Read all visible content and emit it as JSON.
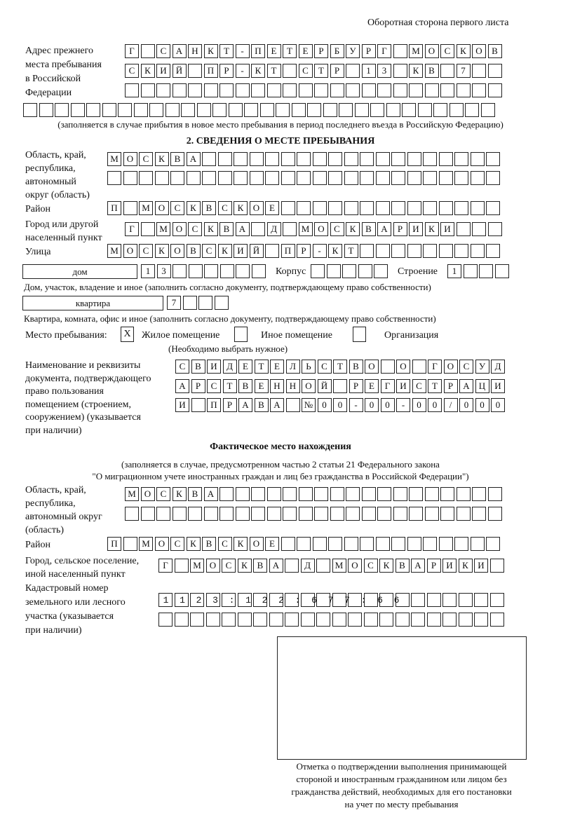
{
  "header": "Оборотная сторона первого листа",
  "prev_address": {
    "label": [
      "Адрес прежнего",
      "места пребывания",
      "в Российской",
      "Федерации"
    ],
    "rows": [
      "Г САНКТ-ПЕТЕРБУРГ МОСКОВ",
      "СКИЙ ПР-КТ СТР 13 КВ 7  ",
      "                        ",
      "                              "
    ],
    "note": "(заполняется в случае прибытия в новое место пребывания в период последнего въезда в Российскую Федерацию)"
  },
  "section2": {
    "title": "2. СВЕДЕНИЯ О МЕСТЕ ПРЕБЫВАНИЯ",
    "region_label": [
      "Область, край,",
      "республика,",
      "автономный",
      "округ (область)"
    ],
    "region_rows": [
      "МОСКВА                   ",
      "                         "
    ],
    "district_label": "Район",
    "district_row": "П МОСКВСКОЕ              ",
    "city_label": [
      "Город или другой",
      "населенный пункт"
    ],
    "city_row": "Г МОСКВА Д МОСКВАРИКИ   ",
    "street_label": "Улица",
    "street_row": "МОСКОВСКИЙ ПР-КТ         ",
    "house_type": "дом",
    "house_cells": "13      ",
    "korpus_label": "Корпус",
    "korpus_cells": "     ",
    "building_label": "Строение",
    "building_cells": "1   ",
    "house_note": "Дом, участок, владение и иное (заполнить согласно документу, подтверждающему право собственности)",
    "apt_type": "квартира",
    "apt_cells": "7   ",
    "apt_note": "Квартира, комната, офис и иное (заполнить согласно документу, подтверждающему право собственности)",
    "stay_label": "Место пребывания:",
    "options": [
      {
        "label": "Жилое помещение",
        "checked": "X"
      },
      {
        "label": "Иное помещение",
        "checked": ""
      },
      {
        "label": "Организация",
        "checked": ""
      }
    ],
    "choose_note": "(Необходимо выбрать нужное)",
    "doc_label": [
      "Наименование и реквизиты",
      "документа, подтверждающего",
      "право пользования",
      "помещением (строением,",
      "сооружением) (указывается",
      "при наличии)"
    ],
    "doc_rows": [
      "СВИДЕТЕЛЬСТВО О ГОСУД",
      "АРСТВЕННОЙ РЕГИСТРАЦИ",
      "И ПРАВА №00-00-00/000"
    ]
  },
  "actual": {
    "title": "Фактическое место нахождения",
    "note1": "(заполняется в случае, предусмотренном частью 2 статьи 21 Федерального закона",
    "note2": "\"О миграционном учете иностранных граждан и лиц без гражданства в Российской Федерации\")",
    "region_label": [
      "Область, край,",
      "республика,",
      "автономный округ",
      "(область)"
    ],
    "region_rows": [
      "МОСКВА                  ",
      "                        "
    ],
    "district_label": "Район",
    "district_row": "П МОСКВСКОЕ              ",
    "city_label": [
      "Город, сельское поселение,",
      "иной населенный пункт"
    ],
    "city_row": "Г МОСКВА Д МОСКВАРИКИ ",
    "cadastral_label": [
      "Кадастровый номер",
      "земельного или лесного",
      "участка (указывается",
      "при наличии)"
    ],
    "cadastral_rows": [
      "1123:122:677:66       ",
      "                      "
    ]
  },
  "stamp_caption": [
    "Отметка о подтверждении выполнения принимающей",
    "стороной и иностранным гражданином или лицом без",
    "гражданства действий, необходимых для его постановки",
    "на учет по месту пребывания"
  ]
}
